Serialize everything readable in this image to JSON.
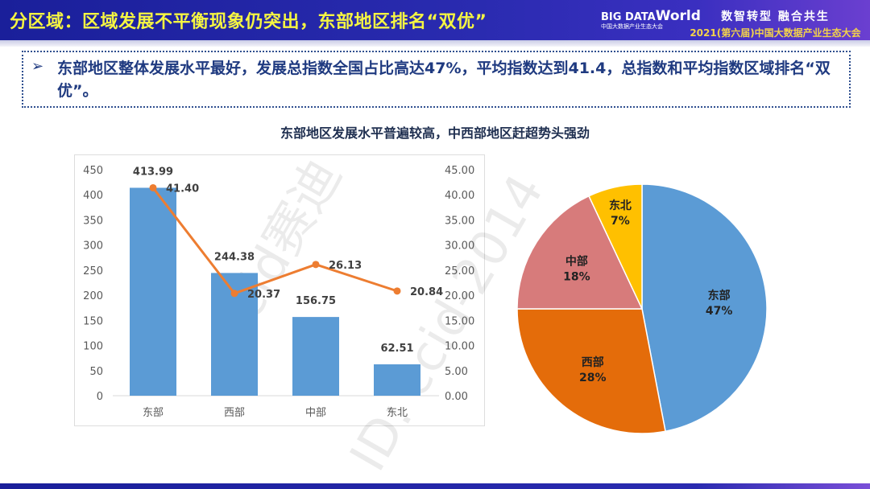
{
  "header": {
    "title": "分区域：区域发展不平衡现象仍突出，东部地区排名“双优”",
    "logo": {
      "big": "BIG DATA",
      "world": "World",
      "sub": "中国大数据产业生态大会"
    },
    "slogan1": "数智转型 融合共生",
    "slogan2": "2021(第六届)中国大数据产业生态大会"
  },
  "summary": {
    "bullet": "➢",
    "text": "东部地区整体发展水平最好，发展总指数全国占比高达47%，平均指数达到41.4，总指数和平均指数区域排名“双优”。"
  },
  "subtitle": "东部地区发展水平普遍较高，中西部地区赶超势头强劲",
  "watermark": [
    "ccid赛迪",
    "ID: ccid-2014"
  ],
  "colors": {
    "bar": "#5b9bd5",
    "line": "#ed7d31",
    "east": "#5b9bd5",
    "west": "#e46c0a",
    "central": "#d77b7b",
    "northeast": "#ffc000"
  },
  "chart_data": [
    {
      "type": "bar+line",
      "categories": [
        "东部",
        "西部",
        "中部",
        "东北"
      ],
      "series": [
        {
          "type": "bar",
          "axis": "left",
          "values": [
            413.99,
            244.38,
            156.75,
            62.51
          ]
        },
        {
          "type": "line",
          "axis": "right",
          "values": [
            41.4,
            20.37,
            26.13,
            20.84
          ]
        }
      ],
      "ylim": [
        0,
        450
      ],
      "yticks": [
        "0",
        "50",
        "100",
        "150",
        "200",
        "250",
        "300",
        "350",
        "400",
        "450"
      ],
      "y2lim": [
        0,
        45
      ],
      "y2ticks": [
        "0.00",
        "5.00",
        "10.00",
        "15.00",
        "20.00",
        "25.00",
        "30.00",
        "35.00",
        "40.00",
        "45.00"
      ],
      "bar_labels": [
        "413.99",
        "244.38",
        "156.75",
        "62.51"
      ],
      "line_labels": [
        "41.40",
        "20.37",
        "26.13",
        "20.84"
      ],
      "grid": false
    },
    {
      "type": "pie",
      "categories": [
        "东部",
        "西部",
        "中部",
        "东北"
      ],
      "values": [
        47,
        28,
        18,
        7
      ],
      "labels": [
        "47%",
        "28%",
        "18%",
        "7%"
      ]
    }
  ]
}
